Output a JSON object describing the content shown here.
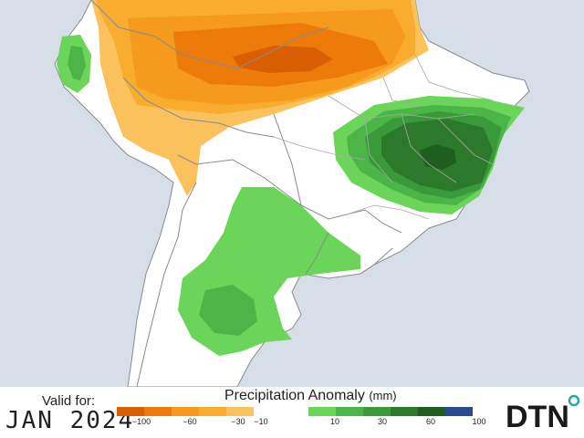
{
  "legend": {
    "title": "Precipitation Anomaly",
    "unit": "(mm)",
    "colors": [
      "#d95f02",
      "#ec7b0a",
      "#f59a1d",
      "#f8ad2f",
      "#fbc15c",
      "#ffffff",
      "#6bd55a",
      "#4cb548",
      "#3a9a3a",
      "#2b7a2b",
      "#1f5e1f",
      "#2a4c8e"
    ],
    "ticks": [
      "−100",
      "−60",
      "−30",
      "−10",
      "10",
      "30",
      "60",
      "100"
    ]
  },
  "valid": {
    "label": "Valid for:",
    "date": "JAN 2024"
  },
  "brand": {
    "name": "DTN",
    "accent": "#2aa8a0"
  },
  "map": {
    "region": "South America",
    "ocean_color": "#d6dee8",
    "land_color": "#ffffff",
    "border_color": "#8a8a8a"
  }
}
